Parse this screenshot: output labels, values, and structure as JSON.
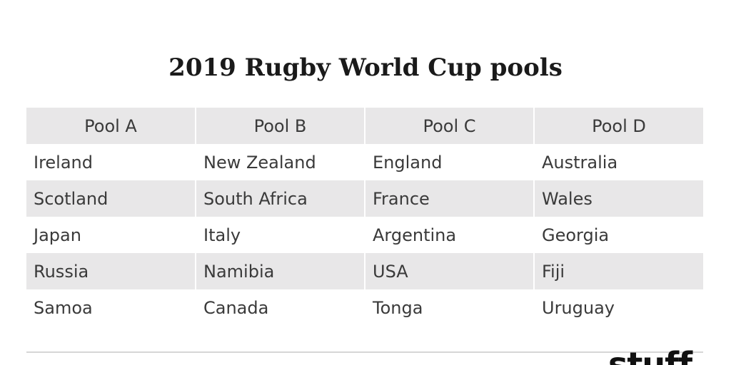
{
  "title": "2019 Rugby World Cup pools",
  "columns": [
    "Pool A",
    "Pool B",
    "Pool C",
    "Pool D"
  ],
  "rows": [
    [
      "Ireland",
      "New Zealand",
      "England",
      "Australia"
    ],
    [
      "Scotland",
      "South Africa",
      "France",
      "Wales"
    ],
    [
      "Japan",
      "Italy",
      "Argentina",
      "Georgia"
    ],
    [
      "Russia",
      "Namibia",
      "USA",
      "Fiji"
    ],
    [
      "Samoa",
      "Canada",
      "Tonga",
      "Uruguay"
    ]
  ],
  "logo": {
    "text": "stuff"
  },
  "colors": {
    "header_bg": "#e8e7e8",
    "stripe_bg": "#e8e7e8",
    "text": "#3a3a3a",
    "title": "#1a1a1a"
  }
}
